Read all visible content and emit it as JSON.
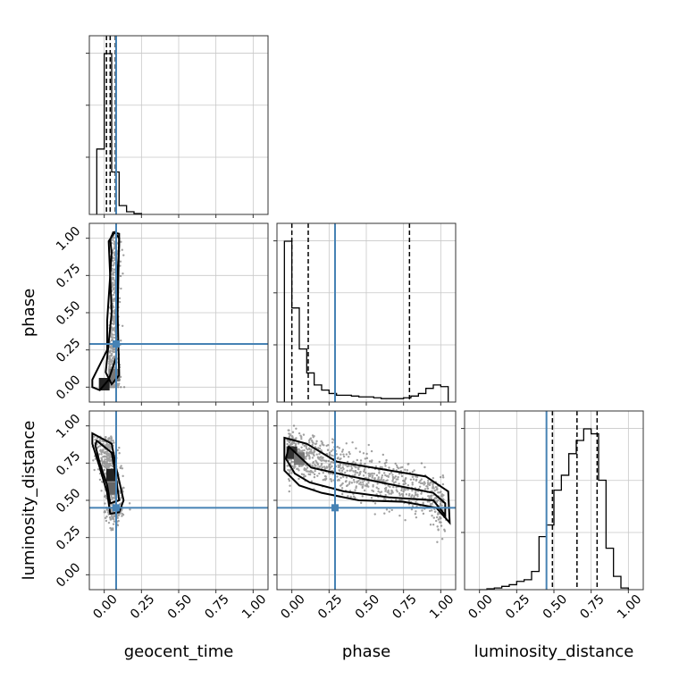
{
  "chart_data": {
    "type": "corner",
    "parameters": [
      "geocent_time",
      "phase",
      "luminosity_distance"
    ],
    "axis_range": [
      -0.1,
      1.1
    ],
    "tick_labels": [
      "0.00",
      "0.25",
      "0.50",
      "0.75",
      "1.00"
    ],
    "tick_values": [
      0.0,
      0.25,
      0.5,
      0.75,
      1.0
    ],
    "grid": true,
    "truth_color": "#4682b4",
    "truths": {
      "geocent_time": 0.08,
      "phase": 0.29,
      "luminosity_distance": 0.45
    },
    "quantiles": {
      "geocent_time": [
        0.015,
        0.04,
        0.075
      ],
      "phase": [
        0.0,
        0.11,
        0.79
      ],
      "luminosity_distance": [
        0.49,
        0.655,
        0.79
      ]
    },
    "histograms": {
      "geocent_time": {
        "bin_edges": [
          -0.05,
          0.0,
          0.05,
          0.1,
          0.15,
          0.2,
          0.25
        ],
        "counts": [
          0.37,
          0.91,
          0.24,
          0.05,
          0.015,
          0.005
        ]
      },
      "phase": {
        "bin_edges": [
          -0.05,
          0.0,
          0.05,
          0.1,
          0.15,
          0.2,
          0.25,
          0.3,
          0.35,
          0.4,
          0.45,
          0.5,
          0.55,
          0.6,
          0.65,
          0.7,
          0.75,
          0.8,
          0.85,
          0.9,
          0.95,
          1.0,
          1.05
        ],
        "counts": [
          0.94,
          0.55,
          0.31,
          0.17,
          0.1,
          0.07,
          0.05,
          0.04,
          0.04,
          0.035,
          0.03,
          0.03,
          0.025,
          0.02,
          0.02,
          0.02,
          0.025,
          0.035,
          0.05,
          0.08,
          0.1,
          0.09
        ]
      },
      "luminosity_distance": {
        "bin_edges": [
          0.0,
          0.05,
          0.1,
          0.15,
          0.2,
          0.25,
          0.3,
          0.35,
          0.4,
          0.45,
          0.5,
          0.55,
          0.6,
          0.65,
          0.7,
          0.75,
          0.8,
          0.85,
          0.9,
          0.95,
          1.0
        ],
        "counts": [
          0.0,
          0.005,
          0.01,
          0.02,
          0.03,
          0.05,
          0.06,
          0.11,
          0.32,
          0.39,
          0.6,
          0.69,
          0.82,
          0.9,
          0.97,
          0.94,
          0.66,
          0.25,
          0.08,
          0.01
        ]
      }
    },
    "contours": {
      "phase_vs_geocent_time": [
        [
          [
            0.05,
            0.02
          ],
          [
            0.1,
            0.08
          ],
          [
            0.09,
            0.5
          ],
          [
            0.1,
            1.0
          ],
          [
            0.07,
            1.04
          ],
          [
            0.03,
            0.98
          ],
          [
            0.05,
            0.5
          ],
          [
            0.01,
            0.1
          ]
        ],
        [
          [
            -0.03,
            -0.02
          ],
          [
            0.03,
            0.05
          ],
          [
            0.08,
            0.2
          ],
          [
            0.08,
            0.6
          ],
          [
            0.1,
            0.95
          ],
          [
            0.1,
            1.03
          ],
          [
            0.06,
            1.04
          ],
          [
            0.04,
            0.99
          ],
          [
            0.05,
            0.9
          ],
          [
            0.02,
            0.45
          ],
          [
            0.02,
            0.25
          ],
          [
            -0.08,
            0.05
          ],
          [
            -0.08,
            0.0
          ]
        ]
      ],
      "luminosity_distance_vs_geocent_time": [
        [
          [
            -0.05,
            0.9
          ],
          [
            0.05,
            0.82
          ],
          [
            0.08,
            0.65
          ],
          [
            0.1,
            0.5
          ],
          [
            0.04,
            0.48
          ],
          [
            0.02,
            0.6
          ],
          [
            -0.03,
            0.75
          ],
          [
            -0.06,
            0.87
          ]
        ],
        [
          [
            -0.08,
            0.95
          ],
          [
            0.05,
            0.88
          ],
          [
            0.08,
            0.72
          ],
          [
            0.13,
            0.5
          ],
          [
            0.1,
            0.42
          ],
          [
            0.04,
            0.41
          ],
          [
            0.02,
            0.55
          ],
          [
            -0.03,
            0.72
          ],
          [
            -0.08,
            0.88
          ]
        ]
      ],
      "luminosity_distance_vs_phase": [
        [
          [
            -0.02,
            0.86
          ],
          [
            0.13,
            0.72
          ],
          [
            0.4,
            0.66
          ],
          [
            0.7,
            0.6
          ],
          [
            0.95,
            0.55
          ],
          [
            1.03,
            0.48
          ],
          [
            1.03,
            0.4
          ],
          [
            0.95,
            0.5
          ],
          [
            0.65,
            0.52
          ],
          [
            0.35,
            0.56
          ],
          [
            0.12,
            0.62
          ],
          [
            0.02,
            0.68
          ],
          [
            -0.04,
            0.78
          ]
        ],
        [
          [
            -0.05,
            0.92
          ],
          [
            0.1,
            0.88
          ],
          [
            0.3,
            0.76
          ],
          [
            0.6,
            0.71
          ],
          [
            0.9,
            0.66
          ],
          [
            1.05,
            0.56
          ],
          [
            1.06,
            0.35
          ],
          [
            0.97,
            0.45
          ],
          [
            0.75,
            0.49
          ],
          [
            0.45,
            0.5
          ],
          [
            0.2,
            0.55
          ],
          [
            0.05,
            0.6
          ],
          [
            -0.05,
            0.7
          ]
        ]
      ]
    }
  }
}
